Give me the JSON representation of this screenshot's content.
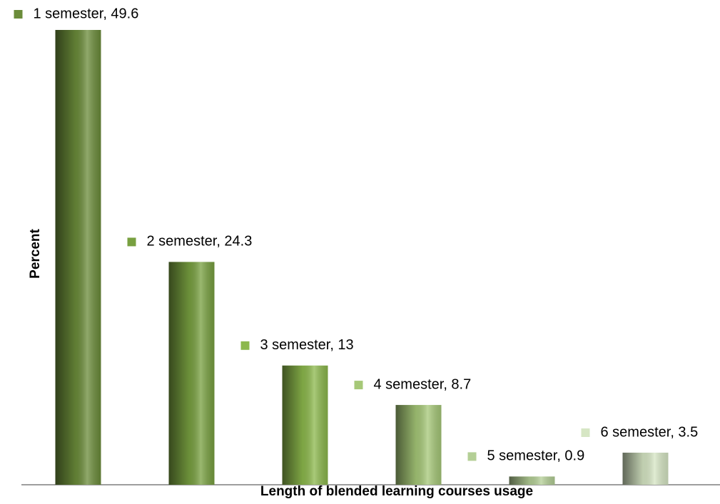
{
  "chart_data": {
    "type": "bar",
    "x_label": "Length of blended learning courses usage",
    "y_label": "Percent",
    "categories": [
      "1 semester",
      "2 semester",
      "3 semester",
      "4 semester",
      "5 semester",
      "6 semester"
    ],
    "values": [
      49.6,
      24.3,
      13,
      8.7,
      0.9,
      3.5
    ],
    "value_labels": [
      "1 semester, 49.6",
      "2 semester, 24.3",
      "3 semester, 13",
      "4 semester, 8.7",
      "5 semester, 0.9",
      "6 semester, 3.5"
    ],
    "colors": [
      "#6b8c3a",
      "#78a040",
      "#8cb84c",
      "#a6c878",
      "#b4cf96",
      "#d6e6c4"
    ],
    "ylim": [
      0,
      49.6
    ]
  }
}
